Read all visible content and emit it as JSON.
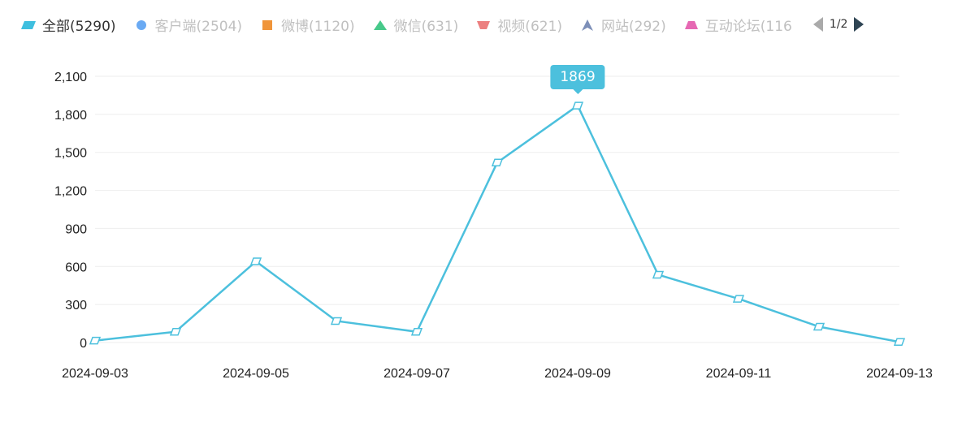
{
  "legend": {
    "items": [
      {
        "label": "全部(5290)",
        "color": "#3fbfdf",
        "shape": "parallelogram",
        "active": true
      },
      {
        "label": "客户端(2504)",
        "color": "#6aaaf3",
        "shape": "circle",
        "active": false
      },
      {
        "label": "微博(1120)",
        "color": "#f0953a",
        "shape": "square",
        "active": false
      },
      {
        "label": "微信(631)",
        "color": "#47c98a",
        "shape": "triangle-up",
        "active": false
      },
      {
        "label": "视频(621)",
        "color": "#ec7f7f",
        "shape": "trapezoid-down",
        "active": false
      },
      {
        "label": "网站(292)",
        "color": "#7d8fb8",
        "shape": "arrow-up",
        "active": false
      },
      {
        "label": "互动论坛(116",
        "color": "#e668b3",
        "shape": "trapezoid-up",
        "active": false
      }
    ],
    "pager": "1/2"
  },
  "chart_data": {
    "type": "line",
    "x": [
      "2024-09-03",
      "2024-09-04",
      "2024-09-05",
      "2024-09-06",
      "2024-09-07",
      "2024-09-08",
      "2024-09-09",
      "2024-09-10",
      "2024-09-11",
      "2024-09-12",
      "2024-09-13"
    ],
    "x_tick_labels": [
      "2024-09-03",
      "2024-09-05",
      "2024-09-07",
      "2024-09-09",
      "2024-09-11",
      "2024-09-13"
    ],
    "series": [
      {
        "name": "全部(5290)",
        "color": "#4cc0dd",
        "values": [
          15,
          85,
          640,
          170,
          85,
          1420,
          1869,
          535,
          345,
          125,
          5
        ]
      }
    ],
    "ylim": [
      0,
      2100
    ],
    "y_ticks": [
      0,
      300,
      600,
      900,
      1200,
      1500,
      1800,
      2100
    ],
    "y_tick_labels": [
      "0",
      "300",
      "600",
      "900",
      "1,200",
      "1,500",
      "1,800",
      "2,100"
    ],
    "grid": true,
    "legend_position": "top-left",
    "tooltip": {
      "index": 6,
      "value": "1869"
    }
  }
}
